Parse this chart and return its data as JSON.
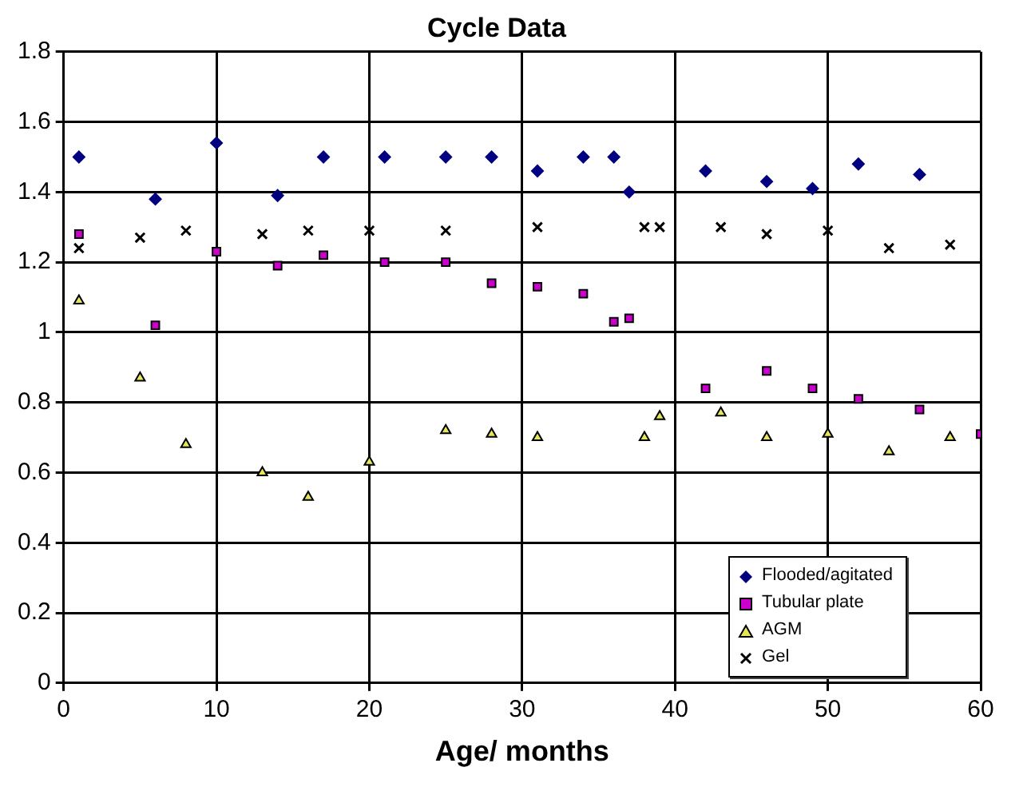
{
  "chart_data": {
    "type": "scatter",
    "title": "Cycle Data",
    "xlabel": "Age/ months",
    "xlim": [
      0,
      60
    ],
    "xticks": [
      0,
      10,
      20,
      30,
      40,
      50,
      60
    ],
    "ylim": [
      0,
      1.8
    ],
    "yticks": [
      0,
      0.2,
      0.4,
      0.6,
      0.8,
      1,
      1.2,
      1.4,
      1.6,
      1.8
    ],
    "grid": true,
    "legend": "bottom right",
    "series": [
      {
        "name": "Flooded/agitated",
        "color": "#000080",
        "marker": "diamond",
        "x": [
          1,
          6,
          10,
          14,
          17,
          21,
          25,
          28,
          31,
          34,
          36,
          37,
          42,
          46,
          49,
          52,
          56
        ],
        "values": [
          1.5,
          1.38,
          1.54,
          1.39,
          1.5,
          1.5,
          1.5,
          1.5,
          1.46,
          1.5,
          1.5,
          1.4,
          1.46,
          1.43,
          1.41,
          1.48,
          1.45
        ]
      },
      {
        "name": "Tubular plate",
        "color": "#cc00cc",
        "marker": "square",
        "x": [
          1,
          6,
          10,
          14,
          17,
          21,
          25,
          28,
          31,
          34,
          36,
          37,
          42,
          46,
          49,
          52,
          56,
          60
        ],
        "values": [
          1.28,
          1.02,
          1.23,
          1.19,
          1.22,
          1.2,
          1.2,
          1.14,
          1.13,
          1.11,
          1.03,
          1.04,
          0.84,
          0.89,
          0.84,
          0.81,
          0.78,
          0.71
        ]
      },
      {
        "name": "AGM",
        "color": "#e6e65c",
        "marker": "triangle",
        "x": [
          1,
          5,
          8,
          13,
          16,
          20,
          25,
          28,
          31,
          38,
          39,
          43,
          46,
          50,
          54,
          58
        ],
        "values": [
          1.09,
          0.87,
          0.68,
          0.6,
          0.53,
          0.63,
          0.72,
          0.71,
          0.7,
          0.7,
          0.76,
          0.77,
          0.7,
          0.71,
          0.66,
          0.7
        ]
      },
      {
        "name": "Gel",
        "color": "#000000",
        "marker": "cross",
        "x": [
          1,
          5,
          8,
          13,
          16,
          20,
          25,
          31,
          38,
          39,
          43,
          46,
          50,
          54,
          58
        ],
        "values": [
          1.24,
          1.27,
          1.29,
          1.28,
          1.29,
          1.29,
          1.29,
          1.3,
          1.3,
          1.3,
          1.3,
          1.28,
          1.29,
          1.24,
          1.25
        ]
      }
    ]
  }
}
